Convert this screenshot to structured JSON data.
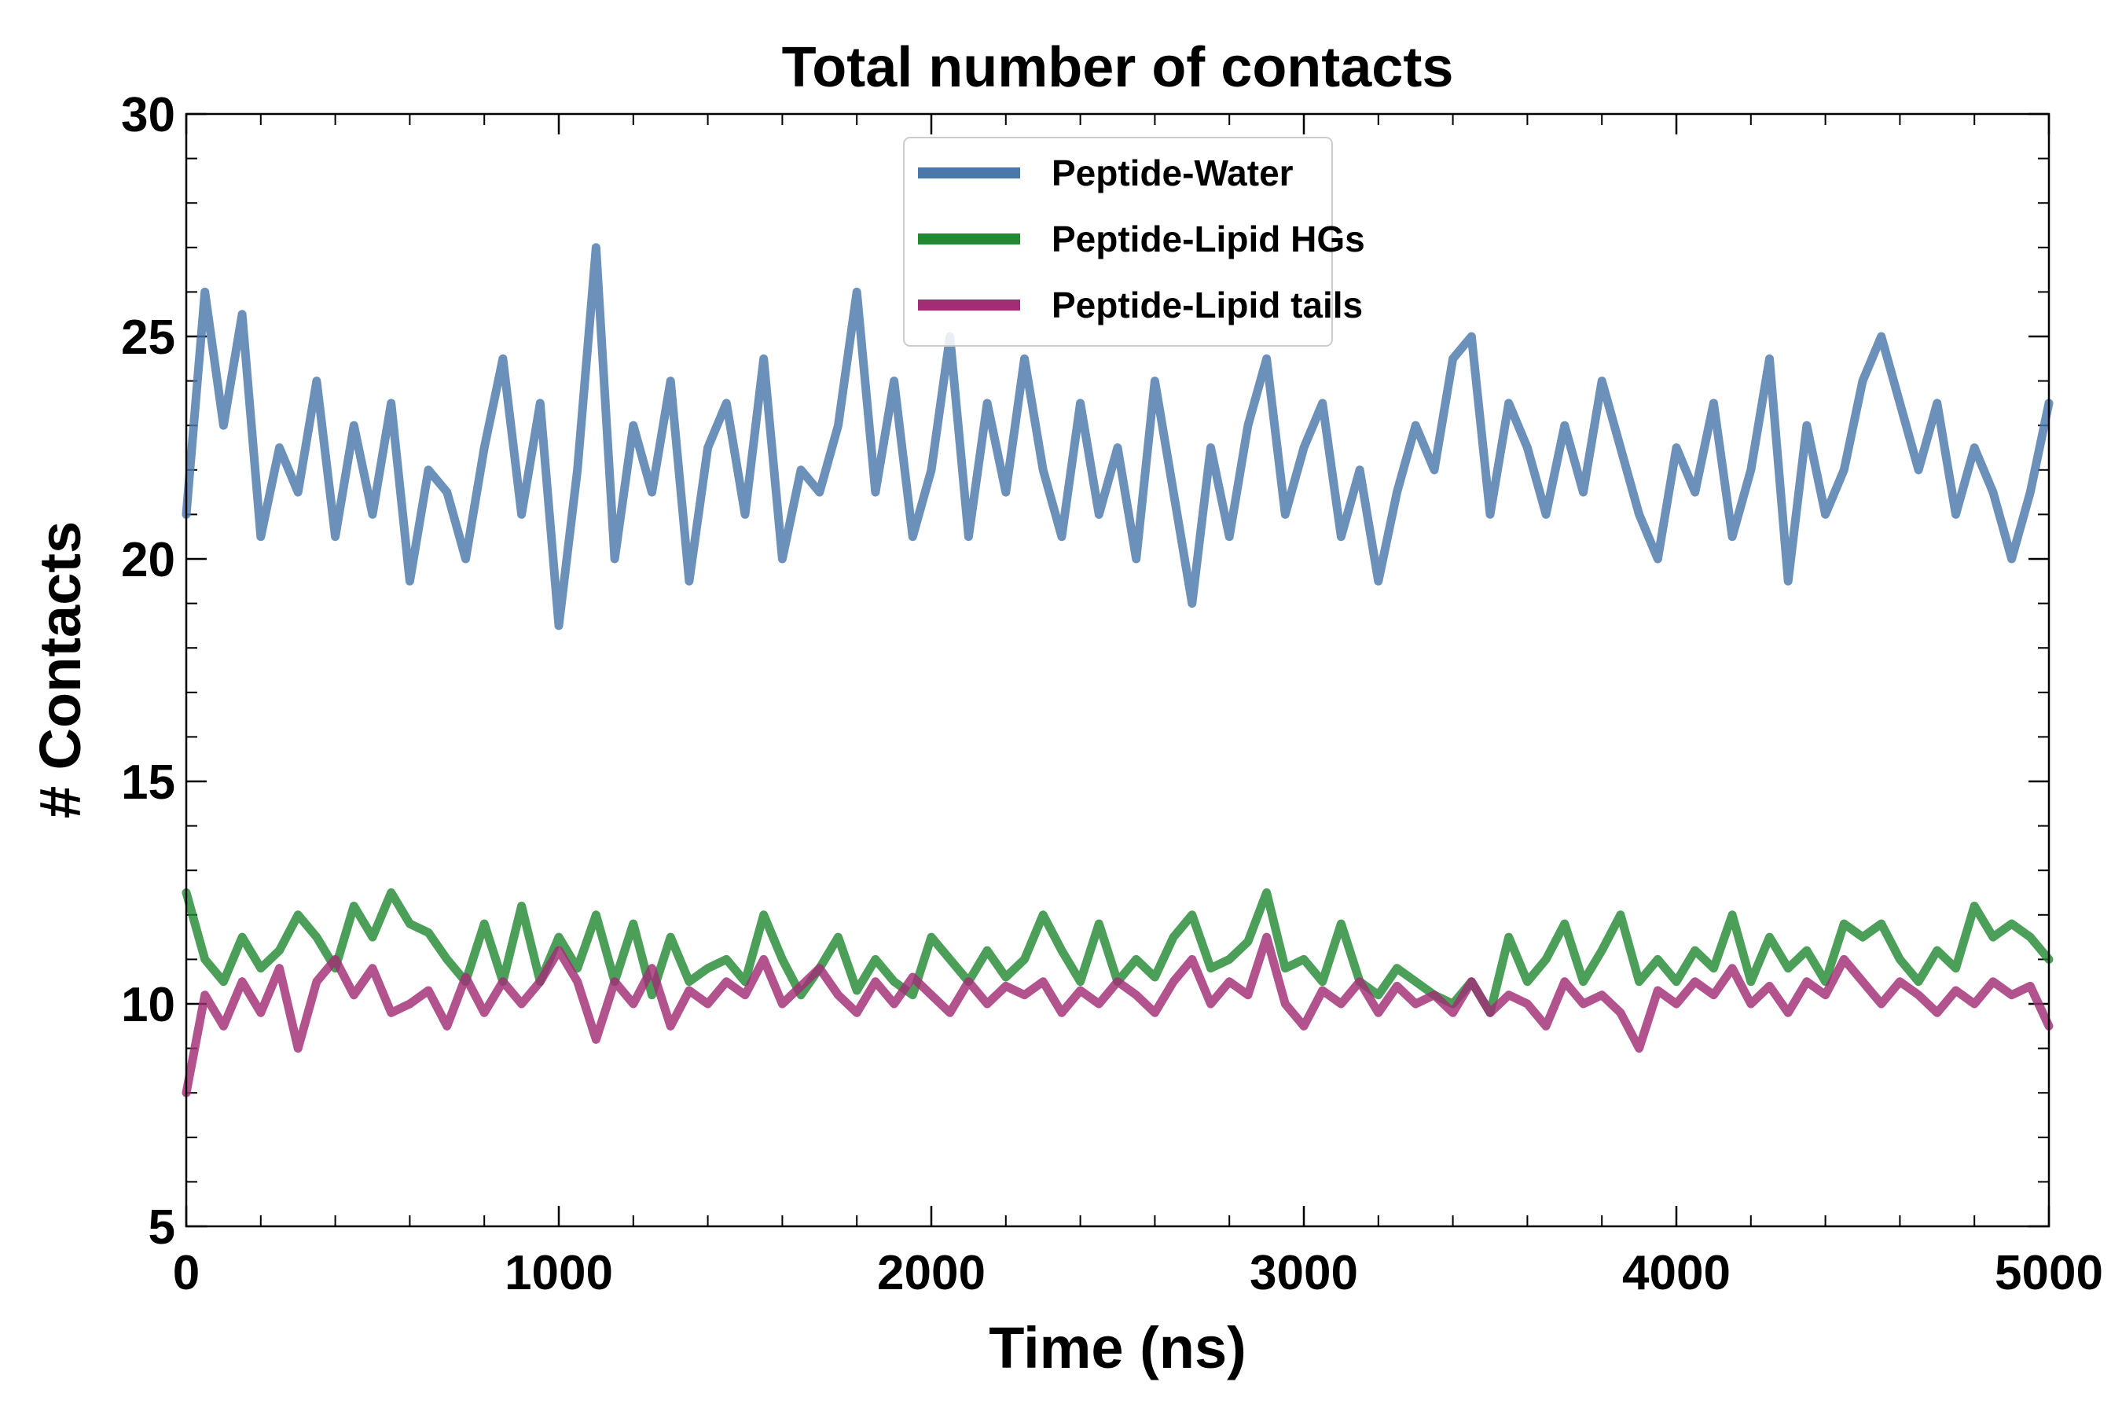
{
  "chart_data": {
    "type": "line",
    "title": "Total number of contacts",
    "xlabel": "Time (ns)",
    "ylabel": "# Contacts",
    "xlim": [
      0,
      5000
    ],
    "ylim": [
      5,
      30
    ],
    "xticks": [
      0,
      1000,
      2000,
      3000,
      4000,
      5000
    ],
    "yticks": [
      5,
      10,
      15,
      20,
      25,
      30
    ],
    "xtick_labels": [
      "0",
      "1000",
      "2000",
      "3000",
      "4000",
      "5000"
    ],
    "ytick_labels": [
      "5",
      "10",
      "15",
      "20",
      "25",
      "30"
    ],
    "x_minor_step": 200,
    "y_minor_step": 1,
    "grid": false,
    "legend_position": "top-center",
    "series": [
      {
        "name": "Peptide-Water",
        "color": "#4a78ab",
        "x": [
          0,
          50,
          100,
          150,
          200,
          250,
          300,
          350,
          400,
          450,
          500,
          550,
          600,
          650,
          700,
          750,
          800,
          850,
          900,
          950,
          1000,
          1050,
          1100,
          1150,
          1200,
          1250,
          1300,
          1350,
          1400,
          1450,
          1500,
          1550,
          1600,
          1650,
          1700,
          1750,
          1800,
          1850,
          1900,
          1950,
          2000,
          2050,
          2100,
          2150,
          2200,
          2250,
          2300,
          2350,
          2400,
          2450,
          2500,
          2550,
          2600,
          2650,
          2700,
          2750,
          2800,
          2850,
          2900,
          2950,
          3000,
          3050,
          3100,
          3150,
          3200,
          3250,
          3300,
          3350,
          3400,
          3450,
          3500,
          3550,
          3600,
          3650,
          3700,
          3750,
          3800,
          3850,
          3900,
          3950,
          4000,
          4050,
          4100,
          4150,
          4200,
          4250,
          4300,
          4350,
          4400,
          4450,
          4500,
          4550,
          4600,
          4650,
          4700,
          4750,
          4800,
          4850,
          4900,
          4950,
          5000
        ],
        "y": [
          21.0,
          26.0,
          23.0,
          25.5,
          20.5,
          22.5,
          21.5,
          24.0,
          20.5,
          23.0,
          21.0,
          23.5,
          19.5,
          22.0,
          21.5,
          20.0,
          22.5,
          24.5,
          21.0,
          23.5,
          18.5,
          22.0,
          27.0,
          20.0,
          23.0,
          21.5,
          24.0,
          19.5,
          22.5,
          23.5,
          21.0,
          24.5,
          20.0,
          22.0,
          21.5,
          23.0,
          26.0,
          21.5,
          24.0,
          20.5,
          22.0,
          25.0,
          20.5,
          23.5,
          21.5,
          24.5,
          22.0,
          20.5,
          23.5,
          21.0,
          22.5,
          20.0,
          24.0,
          21.5,
          19.0,
          22.5,
          20.5,
          23.0,
          24.5,
          21.0,
          22.5,
          23.5,
          20.5,
          22.0,
          19.5,
          21.5,
          23.0,
          22.0,
          24.5,
          25.0,
          21.0,
          23.5,
          22.5,
          21.0,
          23.0,
          21.5,
          24.0,
          22.5,
          21.0,
          20.0,
          22.5,
          21.5,
          23.5,
          20.5,
          22.0,
          24.5,
          19.5,
          23.0,
          21.0,
          22.0,
          24.0,
          25.0,
          23.5,
          22.0,
          23.5,
          21.0,
          22.5,
          21.5,
          20.0,
          21.5,
          23.5
        ]
      },
      {
        "name": "Peptide-Lipid HGs",
        "color": "#238a34",
        "x": [
          0,
          50,
          100,
          150,
          200,
          250,
          300,
          350,
          400,
          450,
          500,
          550,
          600,
          650,
          700,
          750,
          800,
          850,
          900,
          950,
          1000,
          1050,
          1100,
          1150,
          1200,
          1250,
          1300,
          1350,
          1400,
          1450,
          1500,
          1550,
          1600,
          1650,
          1700,
          1750,
          1800,
          1850,
          1900,
          1950,
          2000,
          2050,
          2100,
          2150,
          2200,
          2250,
          2300,
          2350,
          2400,
          2450,
          2500,
          2550,
          2600,
          2650,
          2700,
          2750,
          2800,
          2850,
          2900,
          2950,
          3000,
          3050,
          3100,
          3150,
          3200,
          3250,
          3300,
          3350,
          3400,
          3450,
          3500,
          3550,
          3600,
          3650,
          3700,
          3750,
          3800,
          3850,
          3900,
          3950,
          4000,
          4050,
          4100,
          4150,
          4200,
          4250,
          4300,
          4350,
          4400,
          4450,
          4500,
          4550,
          4600,
          4650,
          4700,
          4750,
          4800,
          4850,
          4900,
          4950,
          5000
        ],
        "y": [
          12.5,
          11.0,
          10.5,
          11.5,
          10.8,
          11.2,
          12.0,
          11.5,
          10.8,
          12.2,
          11.5,
          12.5,
          11.8,
          11.6,
          11.0,
          10.5,
          11.8,
          10.5,
          12.2,
          10.5,
          11.5,
          10.8,
          12.0,
          10.5,
          11.8,
          10.2,
          11.5,
          10.5,
          10.8,
          11.0,
          10.5,
          12.0,
          11.0,
          10.2,
          10.8,
          11.5,
          10.3,
          11.0,
          10.5,
          10.2,
          11.5,
          11.0,
          10.5,
          11.2,
          10.6,
          11.0,
          12.0,
          11.2,
          10.5,
          11.8,
          10.5,
          11.0,
          10.6,
          11.5,
          12.0,
          10.8,
          11.0,
          11.4,
          12.5,
          10.8,
          11.0,
          10.5,
          11.8,
          10.5,
          10.2,
          10.8,
          10.5,
          10.2,
          10.0,
          10.5,
          9.8,
          11.5,
          10.5,
          11.0,
          11.8,
          10.5,
          11.2,
          12.0,
          10.5,
          11.0,
          10.5,
          11.2,
          10.8,
          12.0,
          10.5,
          11.5,
          10.8,
          11.2,
          10.5,
          11.8,
          11.5,
          11.8,
          11.0,
          10.5,
          11.2,
          10.8,
          12.2,
          11.5,
          11.8,
          11.5,
          11.0
        ]
      },
      {
        "name": "Peptide-Lipid tails",
        "color": "#a12d75",
        "x": [
          0,
          50,
          100,
          150,
          200,
          250,
          300,
          350,
          400,
          450,
          500,
          550,
          600,
          650,
          700,
          750,
          800,
          850,
          900,
          950,
          1000,
          1050,
          1100,
          1150,
          1200,
          1250,
          1300,
          1350,
          1400,
          1450,
          1500,
          1550,
          1600,
          1650,
          1700,
          1750,
          1800,
          1850,
          1900,
          1950,
          2000,
          2050,
          2100,
          2150,
          2200,
          2250,
          2300,
          2350,
          2400,
          2450,
          2500,
          2550,
          2600,
          2650,
          2700,
          2750,
          2800,
          2850,
          2900,
          2950,
          3000,
          3050,
          3100,
          3150,
          3200,
          3250,
          3300,
          3350,
          3400,
          3450,
          3500,
          3550,
          3600,
          3650,
          3700,
          3750,
          3800,
          3850,
          3900,
          3950,
          4000,
          4050,
          4100,
          4150,
          4200,
          4250,
          4300,
          4350,
          4400,
          4450,
          4500,
          4550,
          4600,
          4650,
          4700,
          4750,
          4800,
          4850,
          4900,
          4950,
          5000
        ],
        "y": [
          8.0,
          10.2,
          9.5,
          10.5,
          9.8,
          10.8,
          9.0,
          10.5,
          11.0,
          10.2,
          10.8,
          9.8,
          10.0,
          10.3,
          9.5,
          10.6,
          9.8,
          10.5,
          10.0,
          10.5,
          11.2,
          10.5,
          9.2,
          10.5,
          10.0,
          10.8,
          9.5,
          10.3,
          10.0,
          10.5,
          10.2,
          11.0,
          10.0,
          10.4,
          10.8,
          10.2,
          9.8,
          10.5,
          10.0,
          10.6,
          10.2,
          9.8,
          10.5,
          10.0,
          10.4,
          10.2,
          10.5,
          9.8,
          10.3,
          10.0,
          10.5,
          10.2,
          9.8,
          10.5,
          11.0,
          10.0,
          10.5,
          10.2,
          11.5,
          10.0,
          9.5,
          10.3,
          10.0,
          10.5,
          9.8,
          10.4,
          10.0,
          10.2,
          9.8,
          10.5,
          9.8,
          10.2,
          10.0,
          9.5,
          10.5,
          10.0,
          10.2,
          9.8,
          9.0,
          10.3,
          10.0,
          10.5,
          10.2,
          10.8,
          10.0,
          10.4,
          9.8,
          10.5,
          10.2,
          11.0,
          10.5,
          10.0,
          10.5,
          10.2,
          9.8,
          10.3,
          10.0,
          10.5,
          10.2,
          10.4,
          9.5
        ]
      }
    ]
  }
}
